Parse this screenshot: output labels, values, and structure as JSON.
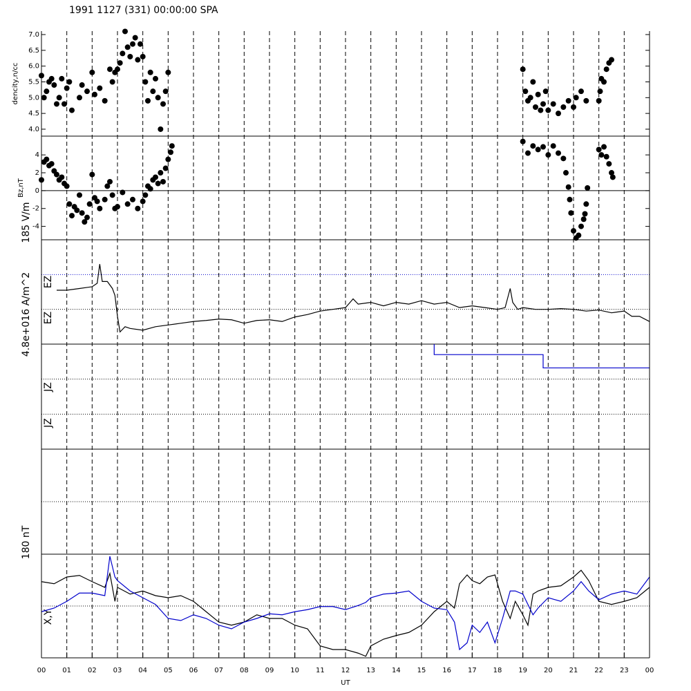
{
  "title": "1991 1127 (331) 00:00:00 SPA",
  "x_axis": {
    "label": "UT",
    "xlim": [
      0,
      24
    ],
    "xticks": [
      {
        "value": 0,
        "label": "00"
      },
      {
        "value": 1,
        "label": "01"
      },
      {
        "value": 2,
        "label": "02"
      },
      {
        "value": 3,
        "label": "03"
      },
      {
        "value": 4,
        "label": "04"
      },
      {
        "value": 5,
        "label": "05"
      },
      {
        "value": 6,
        "label": "06"
      },
      {
        "value": 7,
        "label": "07"
      },
      {
        "value": 8,
        "label": "08"
      },
      {
        "value": 9,
        "label": "09"
      },
      {
        "value": 10,
        "label": "10"
      },
      {
        "value": 11,
        "label": "11"
      },
      {
        "value": 12,
        "label": "12"
      },
      {
        "value": 13,
        "label": "13"
      },
      {
        "value": 14,
        "label": "14"
      },
      {
        "value": 15,
        "label": "15"
      },
      {
        "value": 16,
        "label": "16"
      },
      {
        "value": 17,
        "label": "17"
      },
      {
        "value": 18,
        "label": "18"
      },
      {
        "value": 19,
        "label": "19"
      },
      {
        "value": 20,
        "label": "20"
      },
      {
        "value": 21,
        "label": "21"
      },
      {
        "value": 22,
        "label": "22"
      },
      {
        "value": 23,
        "label": "23"
      },
      {
        "value": 24,
        "label": "00"
      }
    ],
    "grid": "dashed"
  },
  "chart_data": [
    {
      "type": "scatter",
      "labels": [
        "dencity,n/cc"
      ],
      "ylim": [
        3.78,
        7.11
      ],
      "yticks": [
        {
          "value": 4,
          "label": "4.0"
        },
        4.5,
        {
          "value": 5,
          "label": "5.0"
        },
        5.5,
        {
          "value": 6,
          "label": "6.0"
        },
        6.5,
        {
          "value": 7,
          "label": "7.0"
        }
      ],
      "series": [
        {
          "color": "#000000",
          "x": [
            0,
            0.1,
            0.2,
            0.3,
            0.4,
            0.5,
            0.6,
            0.7,
            0.8,
            0.9,
            1.0,
            1.1,
            1.2,
            1.5,
            1.6,
            1.8,
            2.0,
            2.1,
            2.3,
            2.5,
            2.7,
            2.8,
            2.9,
            3.0,
            3.1,
            3.2,
            3.3,
            3.4,
            3.5,
            3.6,
            3.7,
            3.8,
            3.9,
            4.0,
            4.1,
            4.2,
            4.3,
            4.4,
            4.5,
            4.6,
            4.7,
            4.8,
            4.9,
            5.0,
            19.0,
            19.1,
            19.2,
            19.3,
            19.4,
            19.5,
            19.6,
            19.7,
            19.8,
            19.9,
            20.0,
            20.2,
            20.4,
            20.6,
            20.8,
            21.0,
            21.1,
            21.3,
            21.5,
            22.0,
            22.05,
            22.1,
            22.2,
            22.3,
            22.4,
            22.5
          ],
          "values": [
            5.7,
            5.0,
            5.2,
            5.5,
            5.6,
            5.4,
            4.8,
            5.0,
            5.6,
            4.8,
            5.3,
            5.5,
            4.6,
            5.0,
            5.4,
            5.2,
            5.8,
            5.1,
            5.3,
            4.9,
            5.9,
            5.5,
            5.8,
            5.9,
            6.1,
            6.4,
            7.1,
            6.6,
            6.3,
            6.7,
            6.9,
            6.2,
            6.7,
            6.3,
            5.5,
            4.9,
            5.8,
            5.2,
            5.6,
            5.0,
            4.0,
            4.8,
            5.2,
            5.8,
            5.9,
            5.2,
            4.9,
            5.0,
            5.5,
            4.7,
            5.1,
            4.6,
            4.8,
            5.2,
            4.6,
            4.8,
            4.5,
            4.7,
            4.9,
            4.7,
            5.0,
            5.2,
            4.9,
            4.9,
            5.2,
            5.6,
            5.5,
            5.9,
            6.1,
            6.2
          ]
        }
      ]
    },
    {
      "type": "scatter",
      "labels": [
        "Bz,nT"
      ],
      "ylim": [
        -5.5,
        6.1
      ],
      "yticks": [
        -4,
        -2,
        0,
        2,
        4
      ],
      "hlines": [
        0
      ],
      "hline_style": "solid",
      "series": [
        {
          "color": "#000000",
          "x": [
            0.0,
            0.1,
            0.2,
            0.3,
            0.4,
            0.5,
            0.6,
            0.7,
            0.8,
            0.9,
            1.0,
            1.1,
            1.2,
            1.3,
            1.4,
            1.5,
            1.6,
            1.7,
            1.8,
            1.9,
            2.0,
            2.1,
            2.2,
            2.3,
            2.5,
            2.6,
            2.7,
            2.8,
            2.9,
            3.0,
            3.2,
            3.4,
            3.6,
            3.8,
            4.0,
            4.1,
            4.2,
            4.3,
            4.4,
            4.5,
            4.6,
            4.7,
            4.8,
            4.9,
            5.0,
            5.1,
            5.15,
            19.0,
            19.2,
            19.4,
            19.6,
            19.8,
            20.0,
            20.2,
            20.4,
            20.6,
            20.7,
            20.8,
            20.85,
            20.9,
            21.0,
            21.1,
            21.2,
            21.3,
            21.4,
            21.45,
            21.5,
            21.55,
            22.0,
            22.1,
            22.2,
            22.3,
            22.4,
            22.5,
            22.55
          ],
          "values": [
            1.2,
            3.2,
            3.5,
            2.8,
            3.0,
            2.2,
            1.8,
            1.2,
            1.5,
            0.8,
            0.5,
            -1.5,
            -2.8,
            -1.8,
            -2.2,
            -0.5,
            -2.5,
            -3.5,
            -3.0,
            -1.5,
            1.8,
            -0.8,
            -1.2,
            -2.0,
            -1.0,
            0.5,
            1.0,
            -0.5,
            -2.0,
            -1.8,
            -0.2,
            -1.5,
            -1.0,
            -2.0,
            -1.2,
            -0.5,
            0.5,
            0.2,
            1.2,
            1.5,
            0.8,
            2.0,
            1.0,
            2.5,
            3.5,
            4.3,
            5.0,
            5.5,
            4.2,
            5.0,
            4.6,
            4.9,
            4.0,
            5.0,
            4.2,
            3.6,
            2.0,
            0.4,
            -1.0,
            -2.5,
            -4.5,
            -5.3,
            -5.0,
            -4.0,
            -3.2,
            -2.6,
            -1.5,
            0.3,
            4.6,
            4.0,
            4.9,
            3.8,
            3.0,
            2.0,
            1.5
          ]
        }
      ]
    },
    {
      "type": "line",
      "labels": [
        "185 V/m",
        "EZ",
        "EZ"
      ],
      "ylim": [
        0,
        3
      ],
      "hlines": [
        1,
        2
      ],
      "hline_style": "dotted",
      "hline_colors": [
        "#000000",
        "#0000cc"
      ],
      "series": [
        {
          "color": "#000000",
          "x": [
            0.6,
            1.0,
            1.5,
            2.0,
            2.2,
            2.3,
            2.4,
            2.6,
            2.8,
            2.9,
            3.0,
            3.1,
            3.3,
            3.5,
            4.0,
            4.5,
            5.0,
            5.5,
            6.0,
            6.5,
            7.0,
            7.5,
            8.0,
            8.5,
            9.0,
            9.5,
            10.0,
            10.5,
            11.0,
            11.5,
            12.0,
            12.3,
            12.5,
            13.0,
            13.5,
            14.0,
            14.5,
            15.0,
            15.5,
            16.0,
            16.5,
            17.0,
            17.5,
            18.0,
            18.3,
            18.5,
            18.6,
            18.8,
            19.0,
            19.5,
            20.0,
            20.5,
            21.0,
            21.5,
            22.0,
            22.5,
            23.0,
            23.3,
            23.6,
            24.0
          ],
          "values": [
            1.55,
            1.55,
            1.6,
            1.65,
            1.75,
            2.3,
            1.8,
            1.8,
            1.6,
            1.4,
            0.8,
            0.35,
            0.5,
            0.45,
            0.4,
            0.5,
            0.55,
            0.6,
            0.65,
            0.68,
            0.72,
            0.7,
            0.6,
            0.68,
            0.7,
            0.65,
            0.78,
            0.85,
            0.95,
            1.0,
            1.05,
            1.3,
            1.15,
            1.2,
            1.1,
            1.2,
            1.15,
            1.25,
            1.15,
            1.2,
            1.05,
            1.1,
            1.05,
            1.0,
            1.05,
            1.6,
            1.2,
            1.0,
            1.05,
            1.0,
            1.0,
            1.02,
            1.0,
            0.95,
            0.98,
            0.9,
            0.95,
            0.8,
            0.8,
            0.65
          ]
        }
      ]
    },
    {
      "type": "line",
      "labels": [
        "4.8e+016 A/m^2",
        "JZ",
        "JZ"
      ],
      "ylim": [
        0,
        3
      ],
      "hlines": [
        1,
        2
      ],
      "hline_style": "dotted",
      "series": [
        {
          "color": "#0000cc",
          "x": [
            15.5,
            15.5,
            19.8,
            19.8,
            24
          ],
          "values": [
            3,
            2.7,
            2.7,
            2.32,
            2.32
          ]
        }
      ]
    },
    {
      "type": "line",
      "labels": [],
      "ylim": [
        0,
        2
      ],
      "hlines": [
        1
      ],
      "hline_style": "dotted",
      "series": []
    },
    {
      "type": "line",
      "labels": [
        "180 nT",
        "X,Y"
      ],
      "ylim": [
        0,
        2
      ],
      "hlines": [
        1
      ],
      "hline_style": "dotted",
      "series": [
        {
          "color": "#000000",
          "x": [
            0,
            0.5,
            1,
            1.5,
            2,
            2.5,
            2.7,
            2.9,
            3,
            3.5,
            4,
            4.5,
            5,
            5.5,
            6,
            6.5,
            7,
            7.5,
            8,
            8.5,
            9,
            9.5,
            10,
            10.5,
            11,
            11.5,
            12,
            12.5,
            12.8,
            13,
            13.5,
            14,
            14.5,
            15,
            15.5,
            16,
            16.3,
            16.5,
            16.8,
            17,
            17.3,
            17.6,
            17.9,
            18.2,
            18.5,
            18.7,
            19,
            19.2,
            19.4,
            19.6,
            20,
            20.5,
            21,
            21.3,
            21.6,
            22,
            22.5,
            23,
            23.5,
            24
          ],
          "values": [
            1.47,
            1.43,
            1.56,
            1.59,
            1.47,
            1.36,
            1.63,
            1.09,
            1.36,
            1.23,
            1.29,
            1.2,
            1.16,
            1.2,
            1.09,
            0.89,
            0.69,
            0.63,
            0.69,
            0.83,
            0.76,
            0.76,
            0.63,
            0.56,
            0.23,
            0.16,
            0.16,
            0.09,
            0.03,
            0.23,
            0.36,
            0.43,
            0.49,
            0.63,
            0.89,
            1.09,
            0.96,
            1.43,
            1.6,
            1.49,
            1.43,
            1.56,
            1.6,
            1.09,
            0.76,
            1.09,
            0.83,
            0.63,
            1.23,
            1.29,
            1.36,
            1.39,
            1.56,
            1.69,
            1.49,
            1.09,
            1.03,
            1.09,
            1.16,
            1.36
          ]
        },
        {
          "color": "#0000cc",
          "x": [
            0,
            0.5,
            1,
            1.5,
            2,
            2.5,
            2.7,
            2.9,
            3,
            3.5,
            4,
            4.5,
            5,
            5.5,
            6,
            6.5,
            7,
            7.5,
            8,
            8.5,
            9,
            9.5,
            10,
            10.5,
            11,
            11.5,
            12,
            12.5,
            12.8,
            13,
            13.5,
            14,
            14.5,
            15,
            15.5,
            16,
            16.3,
            16.5,
            16.8,
            17,
            17.3,
            17.6,
            17.9,
            18.2,
            18.5,
            18.7,
            19,
            19.2,
            19.4,
            19.6,
            20,
            20.5,
            21,
            21.3,
            21.6,
            22,
            22.5,
            23,
            23.5,
            24
          ],
          "values": [
            0.89,
            0.96,
            1.09,
            1.25,
            1.25,
            1.2,
            1.96,
            1.56,
            1.49,
            1.29,
            1.16,
            1.03,
            0.76,
            0.72,
            0.83,
            0.76,
            0.63,
            0.56,
            0.69,
            0.76,
            0.85,
            0.83,
            0.89,
            0.93,
            0.99,
            0.99,
            0.93,
            1.01,
            1.07,
            1.16,
            1.23,
            1.25,
            1.29,
            1.09,
            0.96,
            0.93,
            0.69,
            0.16,
            0.29,
            0.63,
            0.49,
            0.69,
            0.29,
            0.76,
            1.29,
            1.29,
            1.23,
            1.03,
            0.83,
            0.96,
            1.16,
            1.09,
            1.29,
            1.47,
            1.29,
            1.12,
            1.23,
            1.29,
            1.23,
            1.56
          ]
        }
      ]
    }
  ]
}
